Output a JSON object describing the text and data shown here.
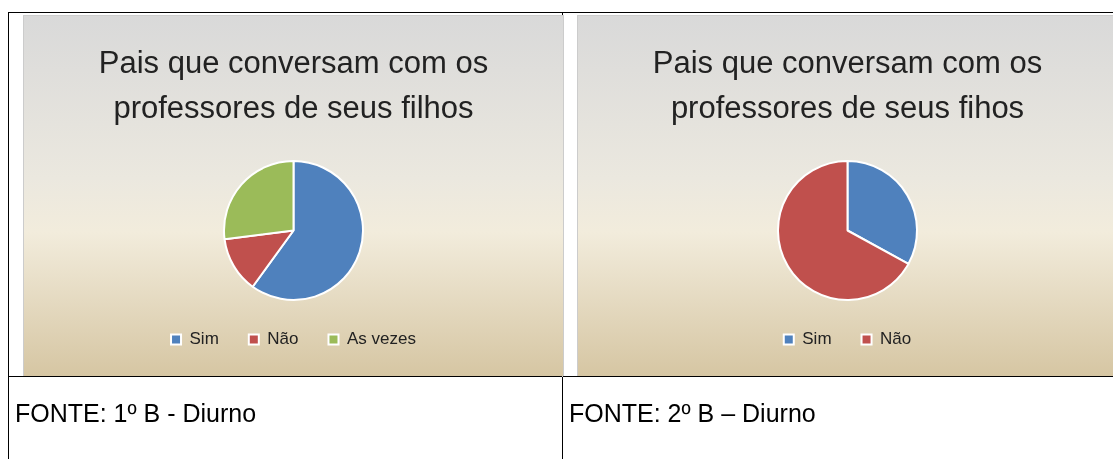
{
  "chart_data": [
    {
      "type": "pie",
      "title": "Pais que conversam com os professores de seus filhos",
      "categories": [
        "Sim",
        "Não",
        "As vezes"
      ],
      "values": [
        60,
        13,
        27
      ],
      "colors": [
        "#4f81bd",
        "#c0504d",
        "#9bbb59"
      ],
      "legend": "bottom",
      "annotations": [
        "FONTE: 1º B - Diurno"
      ]
    },
    {
      "type": "pie",
      "title": "Pais que conversam com os professores de seus fihos",
      "categories": [
        "Sim",
        "Não"
      ],
      "values": [
        33,
        67
      ],
      "colors": [
        "#4f81bd",
        "#c0504d"
      ],
      "legend": "bottom",
      "annotations": [
        "FONTE: 2º B – Diurno"
      ]
    }
  ]
}
